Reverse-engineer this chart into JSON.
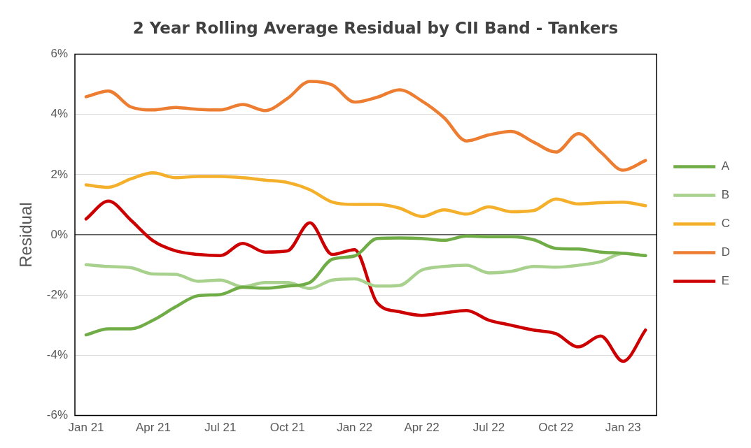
{
  "chart_data": {
    "type": "line",
    "title": "2 Year Rolling Average Residual by CII Band - Tankers",
    "ylabel": "Residual",
    "categories": [
      "Jan 21",
      null,
      null,
      "Apr 21",
      null,
      null,
      "Jul 21",
      null,
      null,
      "Oct 21",
      null,
      null,
      "Jan 22",
      null,
      null,
      "Apr 22",
      null,
      null,
      "Jul 22",
      null,
      null,
      "Oct 22",
      null,
      null,
      "Jan 23",
      null
    ],
    "ylim": [
      -6,
      6
    ],
    "yticks": [
      {
        "value": -6,
        "label": "-6%"
      },
      {
        "value": -4,
        "label": "-4%"
      },
      {
        "value": -2,
        "label": "-2%"
      },
      {
        "value": 0,
        "label": "0%"
      },
      {
        "value": 2,
        "label": "2%"
      },
      {
        "value": 4,
        "label": "4%"
      },
      {
        "value": 6,
        "label": "6%"
      }
    ],
    "grid": "y",
    "legend": "right",
    "marker": "none",
    "line_style": "solid",
    "series": [
      {
        "name": "A",
        "color": "#70ad47",
        "values": [
          -3.32,
          -3.12,
          -3.12,
          -2.83,
          -2.39,
          -2.02,
          -1.98,
          -1.74,
          -1.77,
          -1.7,
          -1.58,
          -0.81,
          -0.7,
          -0.12,
          -0.1,
          -0.12,
          -0.18,
          -0.04,
          -0.06,
          -0.06,
          -0.16,
          -0.45,
          -0.47,
          -0.57,
          -0.61,
          -0.69
        ]
      },
      {
        "name": "B",
        "color": "#a9d18e",
        "values": [
          -0.99,
          -1.05,
          -1.09,
          -1.3,
          -1.31,
          -1.54,
          -1.5,
          -1.72,
          -1.58,
          -1.58,
          -1.78,
          -1.5,
          -1.46,
          -1.7,
          -1.68,
          -1.17,
          -1.05,
          -1.01,
          -1.26,
          -1.21,
          -1.05,
          -1.07,
          -1.01,
          -0.89,
          -0.61,
          -0.69
        ]
      },
      {
        "name": "C",
        "color": "#f4b02a",
        "values": [
          1.66,
          1.58,
          1.86,
          2.06,
          1.9,
          1.94,
          1.94,
          1.9,
          1.82,
          1.74,
          1.5,
          1.09,
          1.01,
          1.01,
          0.89,
          0.61,
          0.83,
          0.69,
          0.93,
          0.77,
          0.81,
          1.19,
          1.03,
          1.07,
          1.09,
          0.97
        ]
      },
      {
        "name": "D",
        "color": "#ed7d31",
        "values": [
          4.59,
          4.78,
          4.25,
          4.15,
          4.23,
          4.17,
          4.15,
          4.33,
          4.13,
          4.53,
          5.1,
          4.98,
          4.41,
          4.57,
          4.82,
          4.45,
          3.89,
          3.12,
          3.32,
          3.44,
          3.08,
          2.75,
          3.36,
          2.75,
          2.15,
          2.47
        ]
      },
      {
        "name": "E",
        "color": "#cc0000",
        "values": [
          0.53,
          1.12,
          0.49,
          -0.2,
          -0.53,
          -0.65,
          -0.69,
          -0.28,
          -0.57,
          -0.53,
          0.4,
          -0.65,
          -0.49,
          -2.25,
          -2.55,
          -2.67,
          -2.59,
          -2.51,
          -2.83,
          -3.0,
          -3.16,
          -3.28,
          -3.72,
          -3.36,
          -4.2,
          -3.16
        ]
      }
    ]
  }
}
